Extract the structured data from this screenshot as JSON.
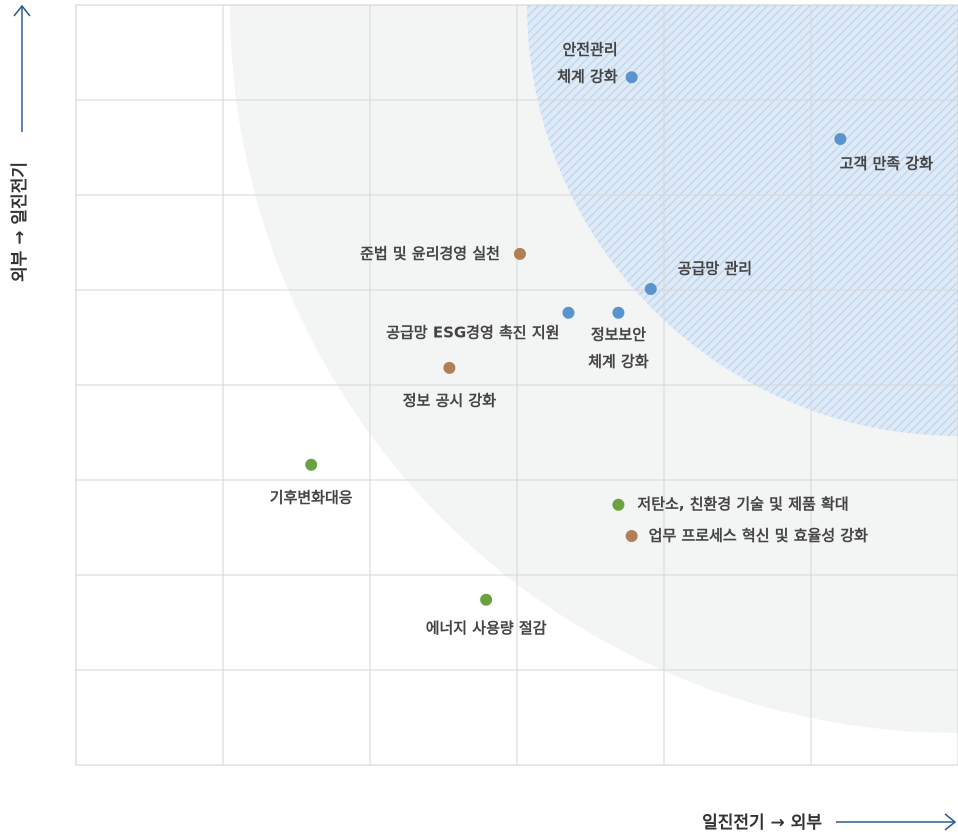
{
  "chart_data": {
    "type": "scatter",
    "xlabel": "일진전기 → 외부",
    "ylabel": "외부 → 일진전기",
    "xlim": [
      0,
      6
    ],
    "ylim": [
      0,
      8
    ],
    "xticks": [
      0,
      1,
      2,
      3,
      4,
      5,
      6
    ],
    "yticks": [
      0,
      1,
      2,
      3,
      4,
      5,
      6,
      7,
      8
    ],
    "grid": true,
    "series": [
      {
        "color": "#5b93cf",
        "x": [
          3.78,
          5.2,
          3.91,
          3.35,
          3.69
        ],
        "values": [
          7.24,
          6.59,
          5.01,
          4.76,
          4.76
        ],
        "labels": [
          [
            "안전관리",
            "체계 강화"
          ],
          [
            "고객 만족 강화"
          ],
          [
            "공급망 관리"
          ],
          [
            "공급망 ESG경영 촉진 지원"
          ],
          [
            "정보보안",
            "체계 강화"
          ]
        ]
      },
      {
        "color": "#b07f57",
        "x": [
          3.02,
          2.54,
          3.78
        ],
        "values": [
          5.38,
          4.18,
          2.41
        ],
        "labels": [
          [
            "준법 및 윤리경영 실천"
          ],
          [
            "정보 공시 강화"
          ],
          [
            "업무 프로세스 혁신 및 효율성 강화"
          ]
        ]
      },
      {
        "color": "#6ba13f",
        "x": [
          1.6,
          3.69,
          2.79
        ],
        "values": [
          3.16,
          2.74,
          1.74
        ],
        "labels": [
          [
            "기후변화대응"
          ],
          [
            "저탄소, 친환경 기술 및 제품 확대"
          ],
          [
            "에너지 사용량 절감"
          ]
        ]
      }
    ]
  }
}
